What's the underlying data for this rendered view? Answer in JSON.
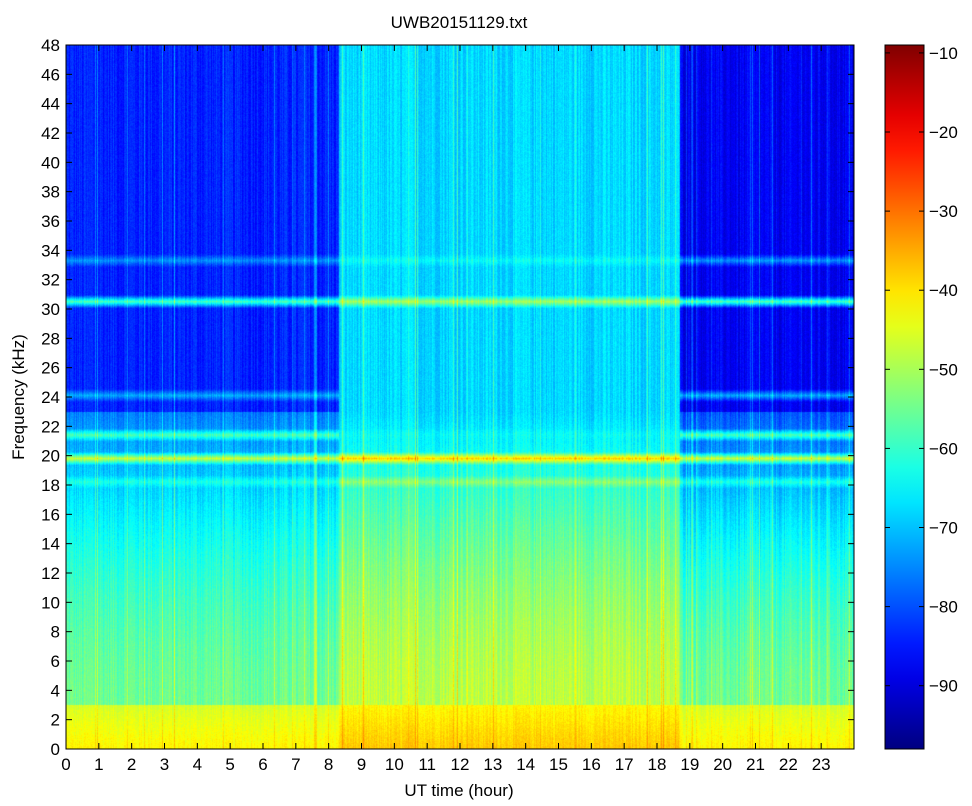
{
  "chart_data": {
    "type": "heatmap",
    "title": "UWB20151129.txt",
    "xlabel": "UT time (hour)",
    "ylabel": "Frequency (kHz)",
    "xlim": [
      0,
      24
    ],
    "ylim": [
      0,
      48
    ],
    "x_ticks": [
      0,
      1,
      2,
      3,
      4,
      5,
      6,
      7,
      8,
      9,
      10,
      11,
      12,
      13,
      14,
      15,
      16,
      17,
      18,
      19,
      20,
      21,
      22,
      23
    ],
    "y_ticks": [
      0,
      2,
      4,
      6,
      8,
      10,
      12,
      14,
      16,
      18,
      20,
      22,
      24,
      26,
      28,
      30,
      32,
      34,
      36,
      38,
      40,
      42,
      44,
      46,
      48
    ],
    "colorbar": {
      "colormap": "jet",
      "clim": [
        -98,
        -9
      ],
      "ticks": [
        -10,
        -20,
        -30,
        -40,
        -50,
        -60,
        -70,
        -80,
        -90
      ]
    },
    "approx_levels_db": {
      "day_segment_hours": [
        8.3,
        18.7
      ],
      "night_upper_band_0_8h": -84,
      "night_upper_band_18_24h": -88,
      "day_upper_band": -68,
      "lower_band_night": -55,
      "lower_band_day": -48,
      "near_dc_band": -42
    },
    "horizontal_lines_khz": [
      {
        "freq": 30.5,
        "level_night": -58,
        "level_day": -50
      },
      {
        "freq": 19.8,
        "level_night": -47,
        "level_day": -38
      },
      {
        "freq": 21.4,
        "level_night": -58,
        "level_day": -64
      },
      {
        "freq": 33.3,
        "level_night": -74,
        "level_day": -64
      },
      {
        "freq": 18.2,
        "level_night": -62,
        "level_day": -52
      },
      {
        "freq": 24.1,
        "level_night": -72,
        "level_day": -68
      }
    ]
  }
}
